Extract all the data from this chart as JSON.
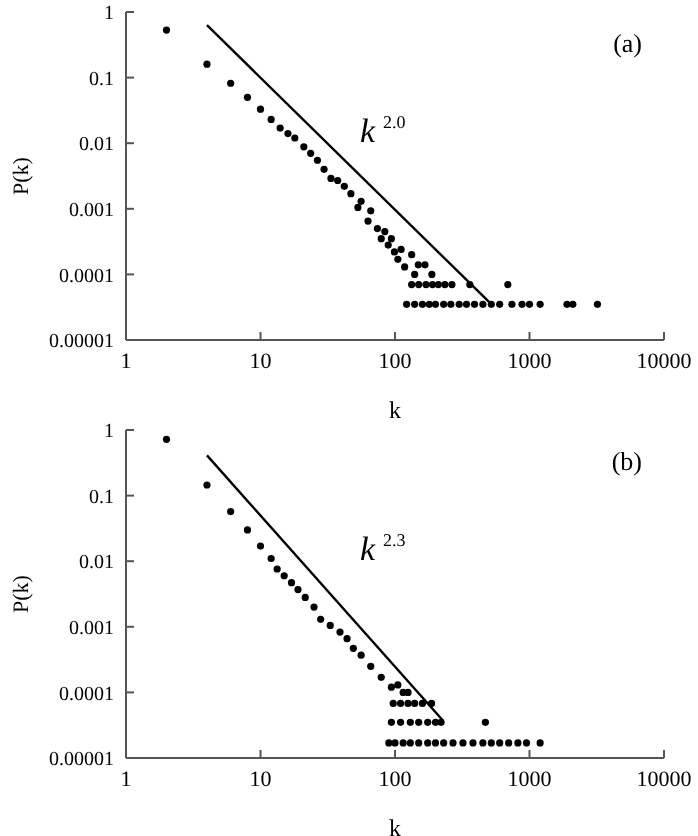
{
  "chart_data": [
    {
      "type": "scatter",
      "title": "(a)",
      "xlabel": "k",
      "ylabel": "P(k)",
      "annotations": [
        "k$^{2.0}$"
      ],
      "log": "xy",
      "grid": false,
      "legend": false,
      "xlim": [
        1,
        10000
      ],
      "xticks": [
        1,
        10,
        100,
        1000,
        10000
      ],
      "ylim": [
        1e-05,
        1
      ],
      "yticks": [
        {
          "value": 1e-05,
          "label": "0.00001"
        },
        0.0001,
        0.001,
        0.01,
        0.1,
        1
      ],
      "series": [
        {
          "marker": "circle",
          "color": "#000000",
          "x": [
            2,
            4,
            6,
            8,
            10,
            12,
            14,
            16,
            18,
            21,
            23.6,
            26.5,
            29.7,
            33.4,
            37.5,
            42,
            47,
            53,
            56,
            63,
            66,
            74,
            79,
            84,
            89,
            94,
            99,
            105,
            111,
            118,
            133,
            140,
            149,
            167,
            188,
            133,
            150,
            170,
            190,
            210,
            235,
            265,
            360,
            690,
            122,
            140,
            160,
            180,
            200,
            230,
            260,
            300,
            340,
            390,
            450,
            520,
            600,
            740,
            880,
            1000,
            1200,
            1900,
            2100,
            3200
          ],
          "values": [
            0.53,
            0.16,
            0.082,
            0.05,
            0.033,
            0.023,
            0.017,
            0.014,
            0.012,
            0.0088,
            0.007,
            0.0055,
            0.004,
            0.0029,
            0.0027,
            0.0022,
            0.0017,
            0.00105,
            0.0013,
            0.00065,
            0.00093,
            0.0005,
            0.00035,
            0.00045,
            0.00028,
            0.00035,
            0.00022,
            0.00017,
            0.00024,
            0.00013,
            0.0002,
            0.0001,
            0.00014,
            0.00014,
            0.0001,
            7e-05,
            7e-05,
            7e-05,
            7e-05,
            7e-05,
            7e-05,
            7e-05,
            7e-05,
            7e-05,
            3.5e-05,
            3.5e-05,
            3.5e-05,
            3.5e-05,
            3.5e-05,
            3.5e-05,
            3.5e-05,
            3.5e-05,
            3.5e-05,
            3.5e-05,
            3.5e-05,
            3.5e-05,
            3.5e-05,
            3.5e-05,
            3.5e-05,
            3.5e-05,
            3.5e-05,
            3.5e-05,
            3.5e-05,
            3.5e-05
          ]
        },
        {
          "type": "line",
          "color": "#000000",
          "x": [
            4,
            500
          ],
          "values": [
            0.63,
            3.8e-05
          ]
        }
      ]
    },
    {
      "type": "scatter",
      "title": "(b)",
      "xlabel": "k",
      "ylabel": "P(k)",
      "annotations": [
        "k$^{2.3}$"
      ],
      "log": "xy",
      "grid": false,
      "legend": false,
      "xlim": [
        1,
        10000
      ],
      "xticks": [
        1,
        10,
        100,
        1000,
        10000
      ],
      "ylim": [
        1e-05,
        1
      ],
      "yticks": [
        {
          "value": 1e-05,
          "label": "0.00001"
        },
        0.0001,
        0.001,
        0.01,
        0.1,
        1
      ],
      "series": [
        {
          "marker": "circle",
          "color": "#000000",
          "x": [
            2,
            4,
            6,
            8,
            10,
            12,
            13.3,
            15,
            17,
            19,
            21.5,
            25,
            28,
            33,
            39,
            44,
            49,
            56,
            66,
            79,
            94,
            105,
            115,
            125,
            97,
            110,
            125,
            140,
            160,
            187,
            94,
            110,
            130,
            150,
            175,
            200,
            220,
            470,
            90,
            100,
            115,
            130,
            150,
            175,
            200,
            230,
            270,
            320,
            380,
            450,
            520,
            600,
            700,
            820,
            950,
            1200
          ],
          "values": [
            0.72,
            0.145,
            0.057,
            0.03,
            0.017,
            0.011,
            0.0076,
            0.006,
            0.0047,
            0.0037,
            0.0028,
            0.002,
            0.0013,
            0.00105,
            0.00083,
            0.00066,
            0.00047,
            0.00037,
            0.00025,
            0.00017,
            0.00012,
            0.00013,
            0.0001,
            0.0001,
            6.8e-05,
            6.8e-05,
            6.8e-05,
            6.8e-05,
            6.8e-05,
            6.8e-05,
            3.5e-05,
            3.5e-05,
            3.5e-05,
            3.5e-05,
            3.5e-05,
            3.5e-05,
            3.5e-05,
            3.5e-05,
            1.7e-05,
            1.7e-05,
            1.7e-05,
            1.7e-05,
            1.7e-05,
            1.7e-05,
            1.7e-05,
            1.7e-05,
            1.7e-05,
            1.7e-05,
            1.7e-05,
            1.7e-05,
            1.7e-05,
            1.7e-05,
            1.7e-05,
            1.7e-05,
            1.7e-05,
            1.7e-05
          ]
        },
        {
          "type": "line",
          "color": "#000000",
          "x": [
            4,
            228
          ],
          "values": [
            0.41,
            3.7e-05
          ]
        }
      ]
    }
  ]
}
